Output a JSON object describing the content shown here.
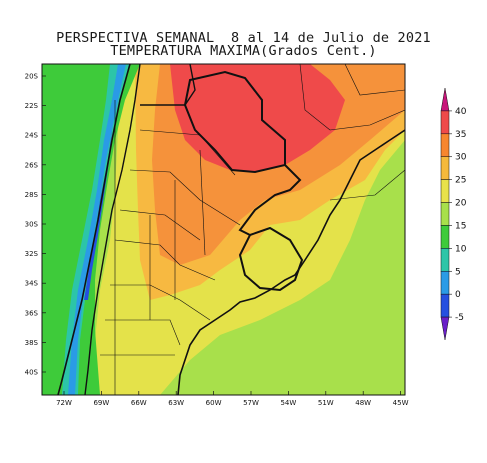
{
  "title_line1": "PERSPECTIVA SEMANAL  8 al 14 de Julio de 2021",
  "title_line2": "TEMPERATURA MAXIMA(Grados Cent.)",
  "lat_labels": [
    "20S",
    "22S",
    "24S",
    "26S",
    "28S",
    "30S",
    "32S",
    "34S",
    "36S",
    "38S",
    "40S"
  ],
  "lon_labels": [
    "72W",
    "69W",
    "66W",
    "63W",
    "60W",
    "57W",
    "54W",
    "51W",
    "48W",
    "45W"
  ],
  "colorbar": {
    "levels": [
      "40",
      "35",
      "30",
      "25",
      "20",
      "15",
      "10",
      "5",
      "0",
      "-5"
    ],
    "colors": [
      "#c8157a",
      "#ef4a4a",
      "#f7862f",
      "#f5b93b",
      "#e8e24b",
      "#a8e04b",
      "#3ecb3a",
      "#2cc5a8",
      "#2a9be6",
      "#2550e0",
      "#6a1fc8"
    ]
  },
  "map_colors": {
    "ocean": "#a8e04b",
    "north_hot": "#ef4a4a",
    "orange": "#f5923b",
    "warm": "#f7b941",
    "yellow": "#e4e24a",
    "green": "#3ecb3a",
    "cyan": "#2cc5a8",
    "blue": "#2a9be6",
    "darkblue": "#2550e0"
  }
}
